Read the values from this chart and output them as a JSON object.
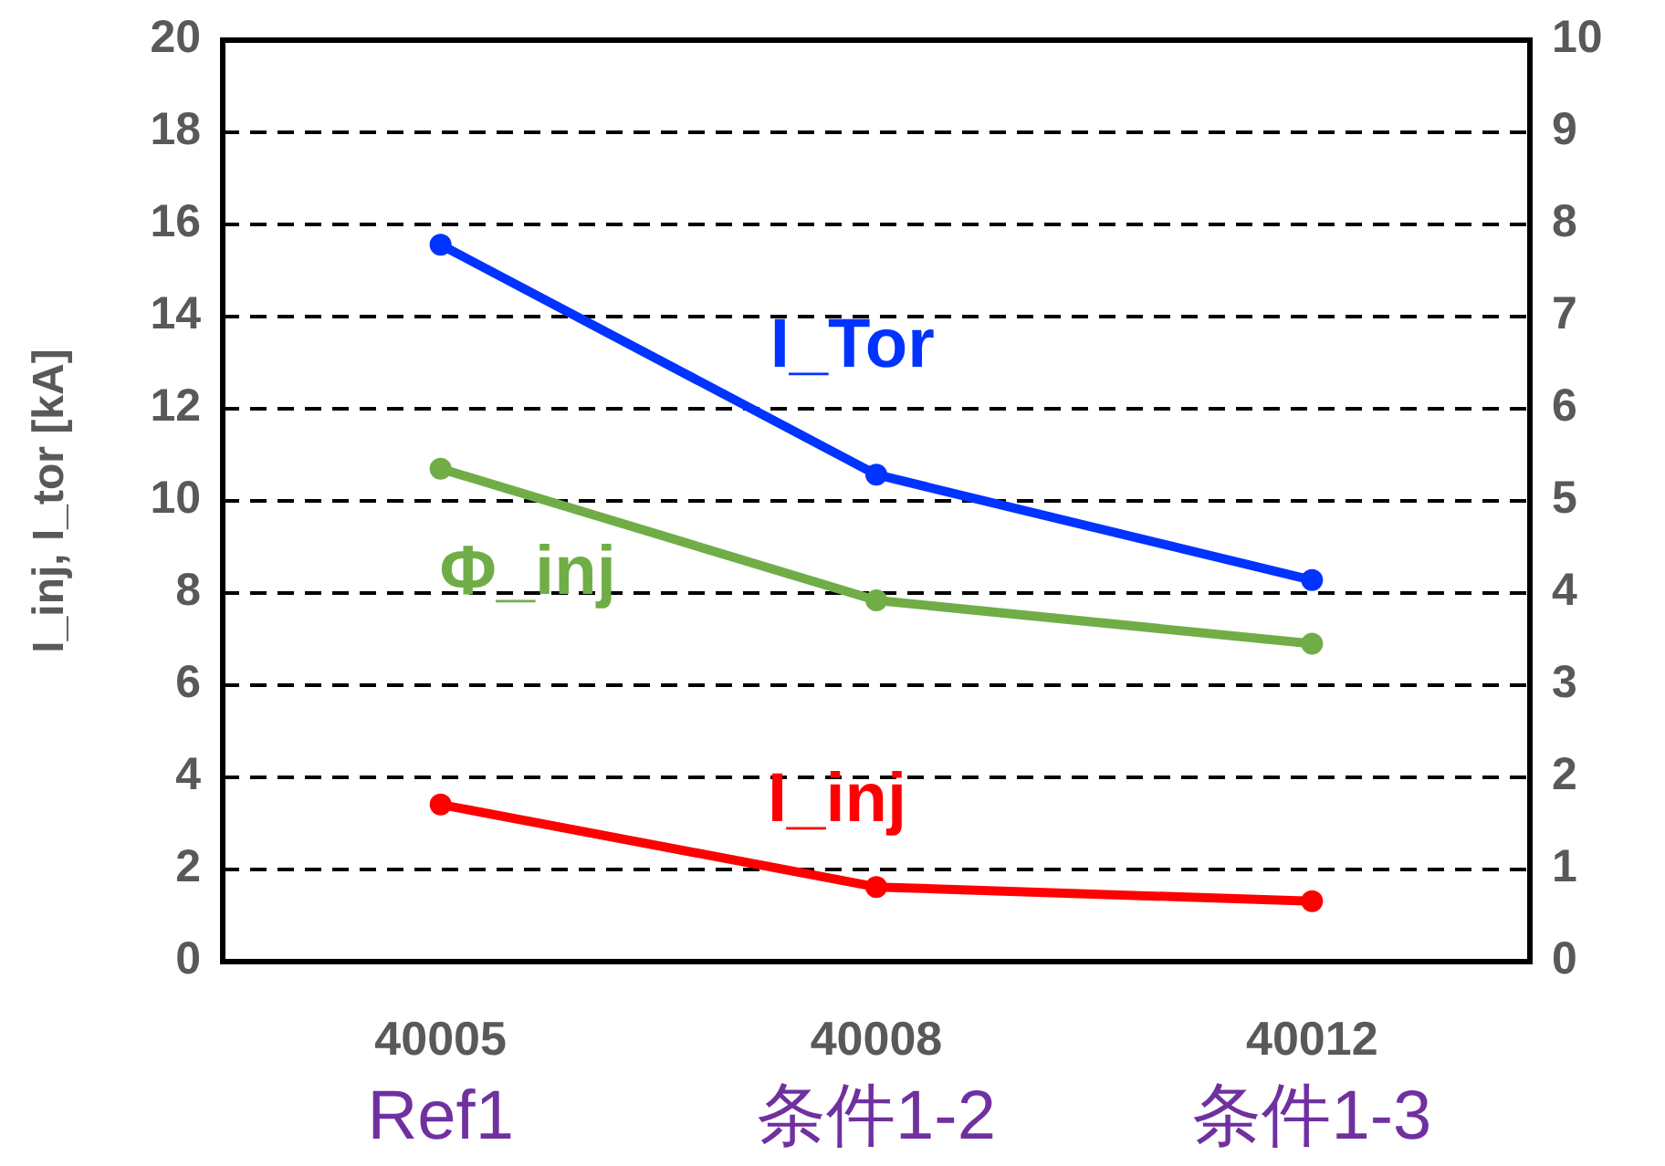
{
  "chart_data": {
    "type": "line",
    "ylabel": "I_inj, I_tor [kA]",
    "categories": [
      "40005\nRef1",
      "40008\n条件1-2",
      "40012\n条件1-3"
    ],
    "series": [
      {
        "name": "I_Tor",
        "color": "#0033ff",
        "values": [
          15.56,
          10.57,
          8.28
        ]
      },
      {
        "name": "Φ_inj",
        "color": "#70ad47",
        "values": [
          5.35,
          3.92,
          3.45
        ],
        "axis": "y2"
      },
      {
        "name": "I_inj",
        "color": "#ff0000",
        "values": [
          3.41,
          1.62,
          1.31
        ]
      }
    ],
    "ylim": [
      0,
      20
    ],
    "yticks": [
      0,
      2,
      4,
      6,
      8,
      10,
      12,
      14,
      16,
      18,
      20
    ],
    "y2lim": [
      0,
      10
    ],
    "y2ticks": [
      0,
      1,
      2,
      3,
      4,
      5,
      6,
      7,
      8,
      9,
      10
    ],
    "grid": "y",
    "marker": "circle",
    "line_style": "solid"
  }
}
